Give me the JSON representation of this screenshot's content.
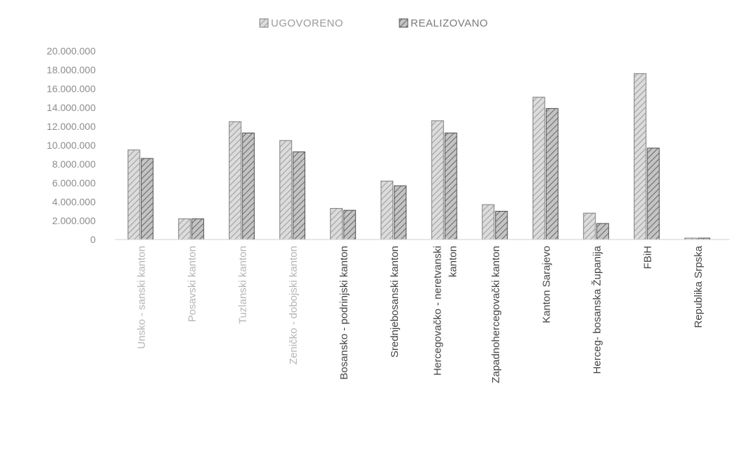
{
  "chart_data": {
    "type": "bar",
    "title": "",
    "xlabel": "",
    "ylabel": "",
    "legend_position": "top-center",
    "grid": false,
    "ylim": [
      0,
      20000000
    ],
    "y_ticks": [
      0,
      2000000,
      4000000,
      6000000,
      8000000,
      10000000,
      12000000,
      14000000,
      16000000,
      18000000,
      20000000
    ],
    "y_tick_labels": [
      "0",
      "2.000.000",
      "4.000.000",
      "6.000.000",
      "8.000.000",
      "10.000.000",
      "12.000.000",
      "14.000.000",
      "16.000.000",
      "18.000.000",
      "20.000.000"
    ],
    "categories": [
      "Unsko - sanski kanton",
      "Posavski kanton",
      "Tuzlanski kanton",
      "Zeničko - dobojski kanton",
      "Bosansko - podrinjski kanton",
      "Srednjebosanski kanton",
      "Hercegovačko - neretvanski kanton",
      "Zapadnohercegovački kanton",
      "Kanton Sarajevo",
      "Herceg- bosanska Županija",
      "FBiH",
      "Republika Srpska"
    ],
    "series": [
      {
        "name": "UGOVORENO",
        "color": "#c9c9c9",
        "values": [
          9500000,
          2200000,
          12500000,
          10500000,
          3300000,
          6200000,
          12600000,
          3700000,
          15100000,
          2800000,
          17600000,
          150000
        ]
      },
      {
        "name": "REALIZOVANO",
        "color": "#a8a8a8",
        "values": [
          8600000,
          2200000,
          11300000,
          9300000,
          3100000,
          5700000,
          11300000,
          3000000,
          13900000,
          1700000,
          9700000,
          150000
        ]
      }
    ]
  }
}
